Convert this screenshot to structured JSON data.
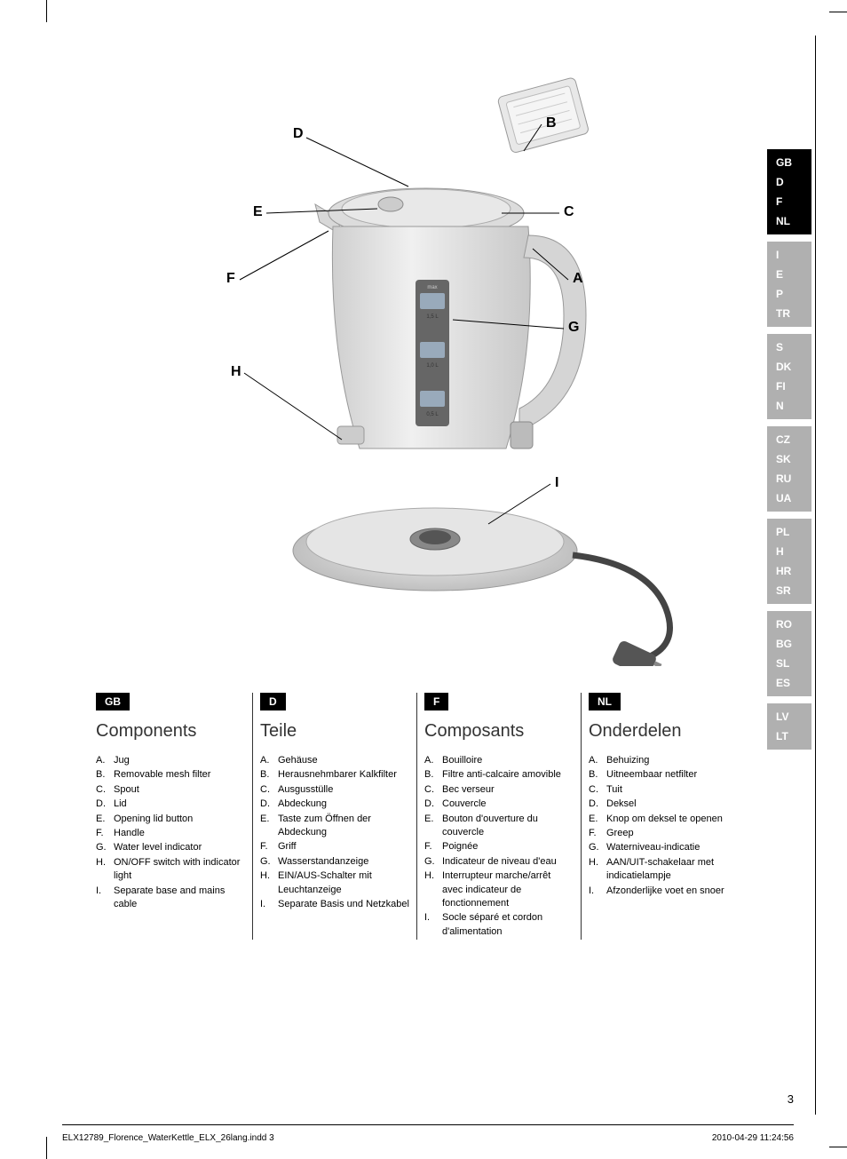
{
  "callouts": {
    "A": "A",
    "B": "B",
    "C": "C",
    "D": "D",
    "E": "E",
    "F": "F",
    "G": "G",
    "H": "H",
    "I": "I"
  },
  "columns": [
    {
      "lang": "GB",
      "title": "Components",
      "items": [
        {
          "l": "A.",
          "t": "Jug"
        },
        {
          "l": "B.",
          "t": "Removable mesh filter"
        },
        {
          "l": "C.",
          "t": "Spout"
        },
        {
          "l": "D.",
          "t": "Lid"
        },
        {
          "l": "E.",
          "t": "Opening lid button"
        },
        {
          "l": "F.",
          "t": "Handle"
        },
        {
          "l": "G.",
          "t": "Water level indicator"
        },
        {
          "l": "H.",
          "t": "ON/OFF switch with indicator light"
        },
        {
          "l": "I.",
          "t": "Separate base and mains cable"
        }
      ]
    },
    {
      "lang": "D",
      "title": "Teile",
      "items": [
        {
          "l": "A.",
          "t": "Gehäuse"
        },
        {
          "l": "B.",
          "t": "Herausnehmbarer Kalkfilter"
        },
        {
          "l": "C.",
          "t": "Ausgusstülle"
        },
        {
          "l": "D.",
          "t": "Abdeckung"
        },
        {
          "l": "E.",
          "t": "Taste zum Öffnen der Abdeckung"
        },
        {
          "l": "F.",
          "t": "Griff"
        },
        {
          "l": "G.",
          "t": "Wasserstandanzeige"
        },
        {
          "l": "H.",
          "t": "EIN/AUS-Schalter mit Leuchtanzeige"
        },
        {
          "l": "I.",
          "t": "Separate Basis und Netzkabel"
        }
      ]
    },
    {
      "lang": "F",
      "title": "Composants",
      "items": [
        {
          "l": "A.",
          "t": "Bouilloire"
        },
        {
          "l": "B.",
          "t": "Filtre anti-calcaire amovible"
        },
        {
          "l": "C.",
          "t": "Bec verseur"
        },
        {
          "l": "D.",
          "t": "Couvercle"
        },
        {
          "l": "E.",
          "t": "Bouton d'ouverture du couvercle"
        },
        {
          "l": "F.",
          "t": "Poignée"
        },
        {
          "l": "G.",
          "t": "Indicateur de niveau d'eau"
        },
        {
          "l": "H.",
          "t": "Interrupteur marche/arrêt avec indicateur de fonctionnement"
        },
        {
          "l": "I.",
          "t": "Socle séparé et cordon d'alimentation"
        }
      ]
    },
    {
      "lang": "NL",
      "title": "Onderdelen",
      "items": [
        {
          "l": "A.",
          "t": "Behuizing"
        },
        {
          "l": "B.",
          "t": "Uitneembaar netfilter"
        },
        {
          "l": "C.",
          "t": "Tuit"
        },
        {
          "l": "D.",
          "t": "Deksel"
        },
        {
          "l": "E.",
          "t": "Knop om deksel te openen"
        },
        {
          "l": "F.",
          "t": "Greep"
        },
        {
          "l": "G.",
          "t": "Waterniveau-indicatie"
        },
        {
          "l": "H.",
          "t": "AAN/UIT-schakelaar met indicatielampje"
        },
        {
          "l": "I.",
          "t": "Afzonderlijke voet en snoer"
        }
      ]
    }
  ],
  "sidebar_groups": [
    {
      "active": true,
      "items": [
        "GB",
        "D",
        "F",
        "NL"
      ]
    },
    {
      "active": false,
      "items": [
        "I",
        "E",
        "P",
        "TR"
      ]
    },
    {
      "active": false,
      "items": [
        "S",
        "DK",
        "FI",
        "N"
      ]
    },
    {
      "active": false,
      "items": [
        "CZ",
        "SK",
        "RU",
        "UA"
      ]
    },
    {
      "active": false,
      "items": [
        "PL",
        "H",
        "HR",
        "SR"
      ]
    },
    {
      "active": false,
      "items": [
        "RO",
        "BG",
        "SL",
        "ES"
      ]
    },
    {
      "active": false,
      "items": [
        "LV",
        "LT"
      ]
    }
  ],
  "page_number": "3",
  "footer_left": "ELX12789_Florence_WaterKettle_ELX_26lang.indd   3",
  "footer_right": "2010-04-29   11:24:56",
  "water_labels": {
    "top": "max",
    "l1": "1,5 L",
    "l2": "1,0 L",
    "l3": "0,5 L"
  },
  "diagram_colors": {
    "kettle_body": "#e8e8e8",
    "kettle_shadow": "#c5c5c5",
    "kettle_dark": "#888",
    "handle": "#d0d0d0",
    "base": "#d8d8d8",
    "plug": "#555"
  }
}
